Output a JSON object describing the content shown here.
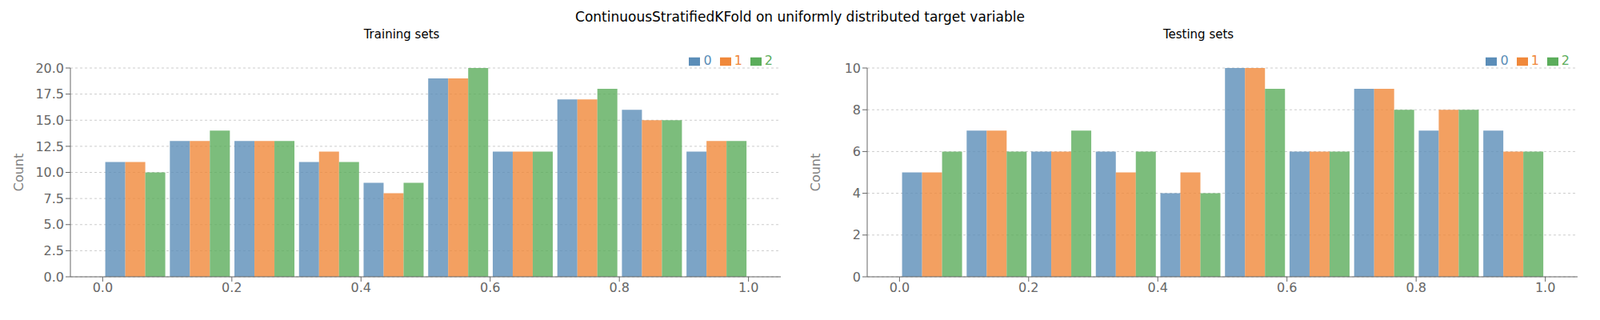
{
  "title": "ContinuousStratifiedKFold on uniformly distributed target variable",
  "chart_data": [
    {
      "type": "bar",
      "title": "Training sets",
      "y_label": "Count",
      "x": [
        0.05,
        0.15,
        0.25,
        0.35,
        0.45,
        0.55,
        0.65,
        0.75,
        0.85,
        0.95
      ],
      "series": [
        {
          "name": "0",
          "color": "#5B8DB8",
          "values": [
            11,
            13,
            13,
            11,
            9,
            19,
            12,
            17,
            16,
            12
          ]
        },
        {
          "name": "1",
          "color": "#F0883A",
          "values": [
            11,
            13,
            13,
            12,
            8,
            19,
            12,
            17,
            15,
            13
          ]
        },
        {
          "name": "2",
          "color": "#5BAD5B",
          "values": [
            10,
            14,
            13,
            11,
            9,
            20,
            12,
            18,
            15,
            13
          ]
        }
      ],
      "xlim": [
        -0.05,
        1.05
      ],
      "xticks": [
        {
          "value": 0,
          "label": "0.0"
        },
        0.2,
        0.4,
        0.6,
        0.8,
        {
          "value": 1,
          "label": "1.0"
        }
      ],
      "ylim": [
        0,
        20
      ],
      "yticks": [
        {
          "value": 0,
          "label": "0.0"
        },
        2.5,
        {
          "value": 5,
          "label": "5.0"
        },
        7.5,
        {
          "value": 10,
          "label": "10.0"
        },
        12.5,
        {
          "value": 15,
          "label": "15.0"
        },
        17.5,
        {
          "value": 20,
          "label": "20.0"
        }
      ],
      "legend": "upper right"
    },
    {
      "type": "bar",
      "title": "Testing sets",
      "y_label": "Count",
      "x": [
        0.05,
        0.15,
        0.25,
        0.35,
        0.45,
        0.55,
        0.65,
        0.75,
        0.85,
        0.95
      ],
      "series": [
        {
          "name": "0",
          "color": "#5B8DB8",
          "values": [
            5,
            7,
            6,
            6,
            4,
            10,
            6,
            9,
            7,
            7
          ]
        },
        {
          "name": "1",
          "color": "#F0883A",
          "values": [
            5,
            7,
            6,
            5,
            5,
            10,
            6,
            9,
            8,
            6
          ]
        },
        {
          "name": "2",
          "color": "#5BAD5B",
          "values": [
            6,
            6,
            7,
            6,
            4,
            9,
            6,
            8,
            8,
            6
          ]
        }
      ],
      "xlim": [
        -0.05,
        1.05
      ],
      "xticks": [
        {
          "value": 0,
          "label": "0.0"
        },
        0.2,
        0.4,
        0.6,
        0.8,
        {
          "value": 1,
          "label": "1.0"
        }
      ],
      "ylim": [
        0,
        10
      ],
      "yticks": [
        0,
        2,
        4,
        6,
        8,
        10
      ],
      "legend": "upper right"
    }
  ]
}
